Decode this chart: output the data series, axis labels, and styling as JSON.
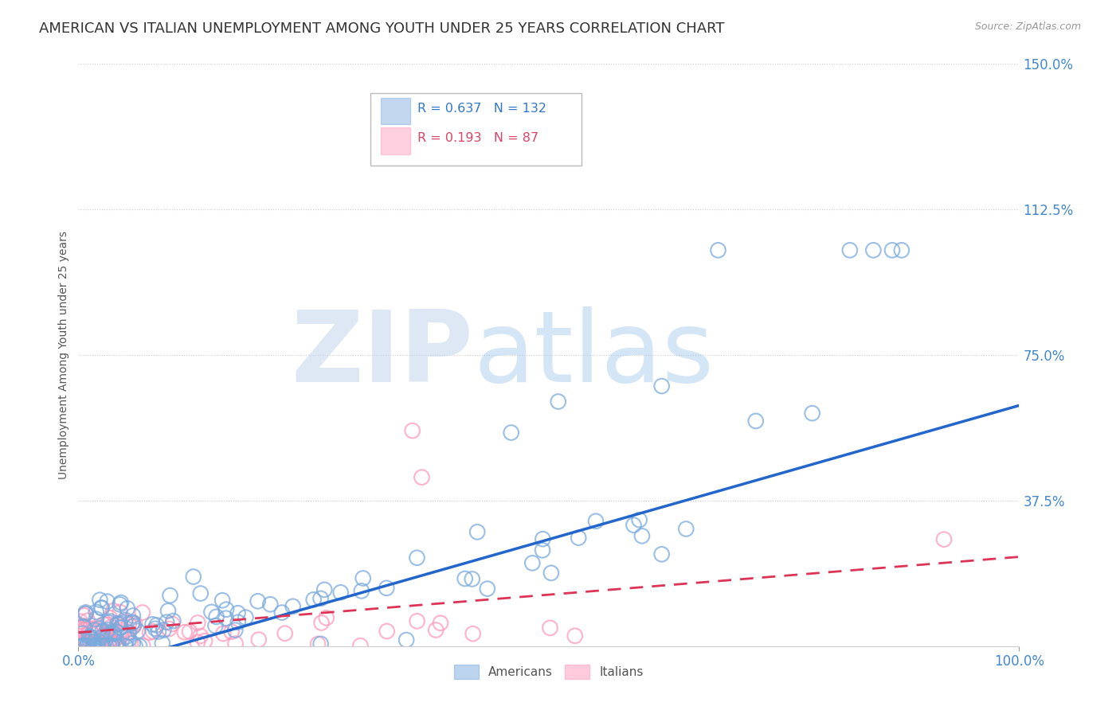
{
  "title": "AMERICAN VS ITALIAN UNEMPLOYMENT AMONG YOUTH UNDER 25 YEARS CORRELATION CHART",
  "source": "Source: ZipAtlas.com",
  "ylabel": "Unemployment Among Youth under 25 years",
  "xlim": [
    0.0,
    1.0
  ],
  "ylim": [
    0.0,
    1.5
  ],
  "xtick_vals": [
    0.0,
    1.0
  ],
  "xtick_labels": [
    "0.0%",
    "100.0%"
  ],
  "ytick_vals": [
    0.375,
    0.75,
    1.125,
    1.5
  ],
  "ytick_labels": [
    "37.5%",
    "75.0%",
    "112.5%",
    "150.0%"
  ],
  "american_R": 0.637,
  "american_N": 132,
  "italian_R": 0.193,
  "italian_N": 87,
  "american_color": "#7aaadd",
  "italian_color": "#ff99bb",
  "american_trend_color": "#2266cc",
  "italian_trend_color": "#dd3355",
  "background_color": "#ffffff",
  "watermark_zip": "ZIP",
  "watermark_atlas": "atlas",
  "title_fontsize": 13,
  "label_fontsize": 10,
  "tick_fontsize": 12,
  "grid_color": "#cccccc",
  "legend_R_am_color": "#3377cc",
  "legend_R_it_color": "#dd4466"
}
